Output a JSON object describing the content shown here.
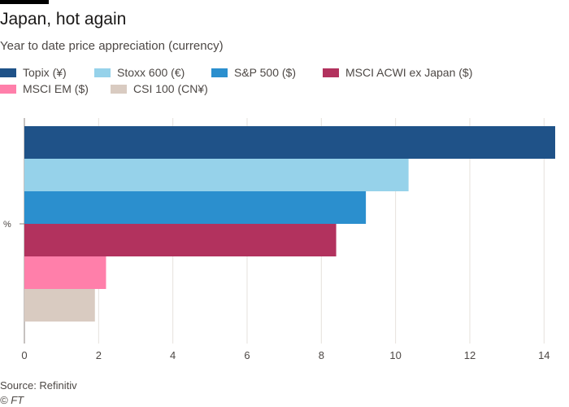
{
  "title": "Japan, hot again",
  "subtitle": "Year to date price appreciation (currency)",
  "source": "Source: Refinitiv",
  "credit": "© FT",
  "chart_data": {
    "type": "bar",
    "orientation": "horizontal",
    "categories": [
      "%"
    ],
    "series": [
      {
        "name": "Topix (¥)",
        "values": [
          14.3
        ],
        "color": "#1f5288"
      },
      {
        "name": "Stoxx 600 (€)",
        "values": [
          10.35
        ],
        "color": "#96d2ea"
      },
      {
        "name": "S&P 500 ($)",
        "values": [
          9.2
        ],
        "color": "#2b8fce"
      },
      {
        "name": "MSCI ACWI ex Japan ($)",
        "values": [
          8.4
        ],
        "color": "#b2325e"
      },
      {
        "name": "MSCI EM ($)",
        "values": [
          2.2
        ],
        "color": "#ff7faa"
      },
      {
        "name": "CSI 100 (CN¥)",
        "values": [
          1.9
        ],
        "color": "#d9cbc1"
      }
    ],
    "xlim": [
      0,
      14.3
    ],
    "xticks": [
      "0",
      "2",
      "4",
      "6",
      "8",
      "10",
      "12",
      "14"
    ],
    "xlabel": "",
    "ylabel": "",
    "grid": true,
    "legend_position": "top"
  }
}
